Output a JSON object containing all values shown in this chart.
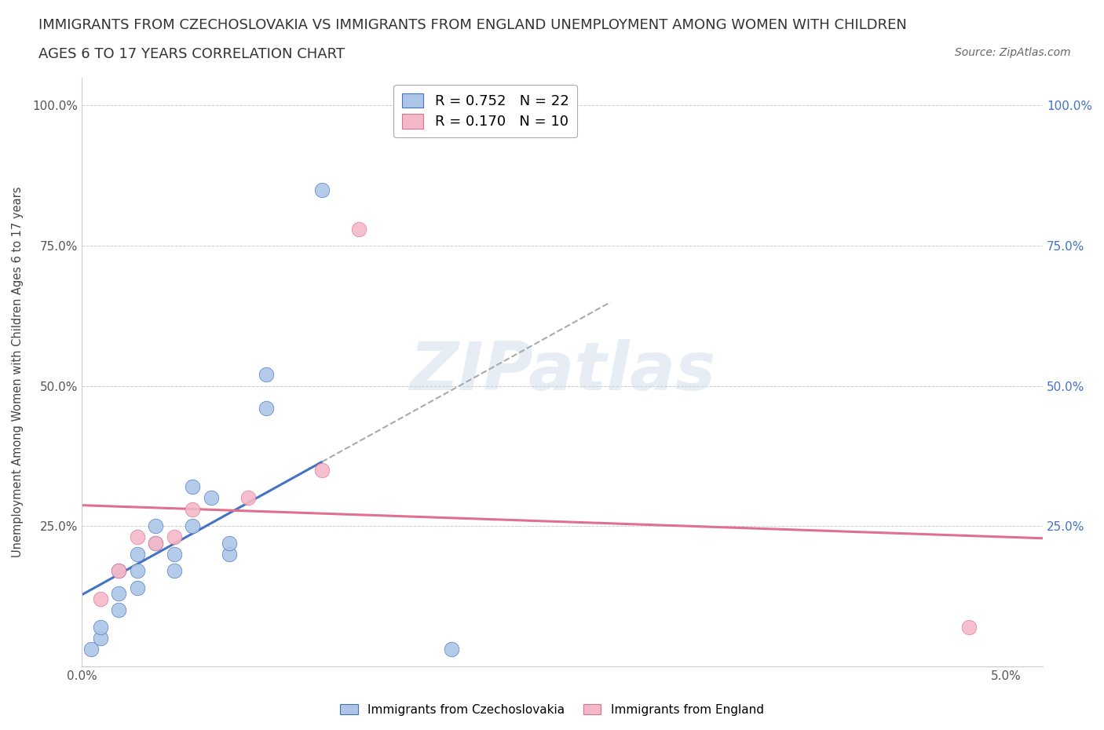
{
  "title_line1": "IMMIGRANTS FROM CZECHOSLOVAKIA VS IMMIGRANTS FROM ENGLAND UNEMPLOYMENT AMONG WOMEN WITH CHILDREN",
  "title_line2": "AGES 6 TO 17 YEARS CORRELATION CHART",
  "source_text": "Source: ZipAtlas.com",
  "ylabel": "Unemployment Among Women with Children Ages 6 to 17 years",
  "background_color": "#ffffff",
  "grid_color": "#cccccc",
  "czecho_color": "#adc6e8",
  "czecho_line_color": "#4472c4",
  "england_color": "#f4b8c8",
  "england_line_color": "#e07090",
  "czecho_R": 0.752,
  "czecho_N": 22,
  "england_R": 0.17,
  "england_N": 10,
  "czecho_points_x": [
    0.0005,
    0.001,
    0.001,
    0.002,
    0.002,
    0.002,
    0.003,
    0.003,
    0.003,
    0.004,
    0.004,
    0.005,
    0.005,
    0.006,
    0.006,
    0.007,
    0.008,
    0.008,
    0.01,
    0.01,
    0.013,
    0.02
  ],
  "czecho_points_y": [
    0.03,
    0.05,
    0.07,
    0.1,
    0.13,
    0.17,
    0.17,
    0.2,
    0.14,
    0.22,
    0.25,
    0.2,
    0.17,
    0.25,
    0.32,
    0.3,
    0.2,
    0.22,
    0.52,
    0.46,
    0.85,
    0.03
  ],
  "england_points_x": [
    0.001,
    0.002,
    0.003,
    0.004,
    0.005,
    0.006,
    0.009,
    0.013,
    0.015,
    0.048
  ],
  "england_points_y": [
    0.12,
    0.17,
    0.23,
    0.22,
    0.23,
    0.28,
    0.3,
    0.35,
    0.78,
    0.07
  ],
  "xlim": [
    0.0,
    0.052
  ],
  "ylim": [
    0.0,
    1.05
  ],
  "yticks": [
    0.0,
    0.25,
    0.5,
    0.75,
    1.0
  ],
  "ytick_labels_left": [
    "",
    "25.0%",
    "50.0%",
    "75.0%",
    "100.0%"
  ],
  "ytick_labels_right": [
    "",
    "25.0%",
    "50.0%",
    "75.0%",
    "100.0%"
  ],
  "xticks": [
    0.0,
    0.01,
    0.02,
    0.03,
    0.04,
    0.05
  ],
  "xtick_labels": [
    "0.0%",
    "",
    "",
    "",
    "",
    "5.0%"
  ],
  "title_fontsize": 13,
  "axis_label_fontsize": 10.5,
  "tick_fontsize": 11,
  "legend_fontsize": 13,
  "marker_size": 180
}
